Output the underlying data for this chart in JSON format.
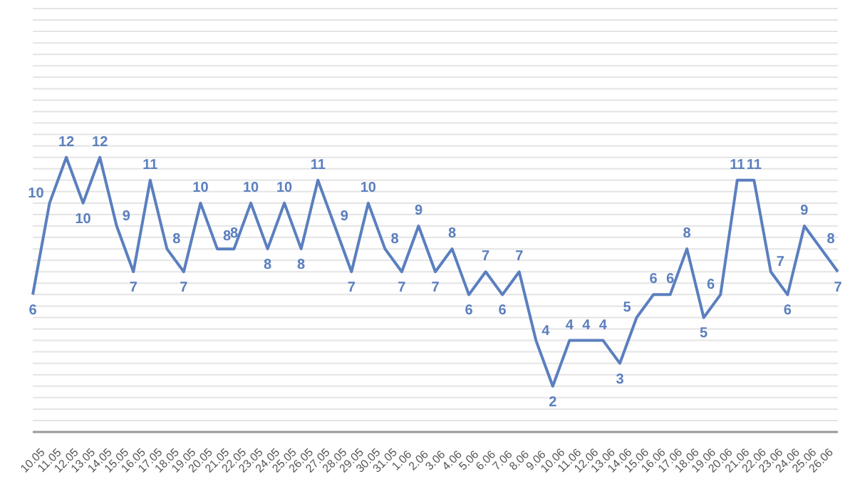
{
  "chart_data": {
    "type": "line",
    "categories": [
      "10.05",
      "11.05",
      "12.05",
      "13.05",
      "14.05",
      "15.05",
      "16.05",
      "17.05",
      "18.05",
      "19.05",
      "20.05",
      "21.05",
      "22.05",
      "23.05",
      "24.05",
      "25.05",
      "26.05",
      "27.05",
      "28.05",
      "29.05",
      "30.05",
      "31.05",
      "1.06",
      "2.06",
      "3.06",
      "4.06",
      "5.06",
      "6.06",
      "7.06",
      "8.06",
      "9.06",
      "10.06",
      "11.06",
      "12.06",
      "13.06",
      "14.06",
      "15.06",
      "16.06",
      "17.06",
      "18.06",
      "19.06",
      "20.06",
      "21.06",
      "22.06",
      "23.06",
      "24.06",
      "25.06",
      "26.06",
      null
    ],
    "series": [
      {
        "color": "#5b7fbf",
        "values": [
          6,
          10,
          12,
          10,
          12,
          9,
          7,
          11,
          8,
          7,
          10,
          8,
          8,
          10,
          8,
          10,
          8,
          11,
          9,
          7,
          10,
          8,
          7,
          9,
          7,
          8,
          6,
          7,
          6,
          7,
          4,
          2,
          4,
          4,
          4,
          3,
          5,
          6,
          6,
          8,
          5,
          6,
          11,
          11,
          7,
          6,
          9,
          8,
          7
        ]
      }
    ],
    "ylim": [
      0,
      18.5
    ],
    "yticks": [
      {
        "value": 0,
        "label": null
      },
      {
        "value": 0.5,
        "label": null
      },
      {
        "value": 1,
        "label": null
      },
      {
        "value": 1.5,
        "label": null
      },
      {
        "value": 2,
        "label": null
      },
      {
        "value": 2.5,
        "label": null
      },
      {
        "value": 3,
        "label": null
      },
      {
        "value": 3.5,
        "label": null
      },
      {
        "value": 4,
        "label": null
      },
      {
        "value": 4.5,
        "label": null
      },
      {
        "value": 5,
        "label": null
      },
      {
        "value": 5.5,
        "label": null
      },
      {
        "value": 6,
        "label": null
      },
      {
        "value": 6.5,
        "label": null
      },
      {
        "value": 7,
        "label": null
      },
      {
        "value": 7.5,
        "label": null
      },
      {
        "value": 8,
        "label": null
      },
      {
        "value": 8.5,
        "label": null
      },
      {
        "value": 9,
        "label": null
      },
      {
        "value": 9.5,
        "label": null
      },
      {
        "value": 10,
        "label": null
      },
      {
        "value": 10.5,
        "label": null
      },
      {
        "value": 11,
        "label": null
      },
      {
        "value": 11.5,
        "label": null
      },
      {
        "value": 12,
        "label": null
      },
      {
        "value": 12.5,
        "label": null
      },
      {
        "value": 13,
        "label": null
      },
      {
        "value": 13.5,
        "label": null
      },
      {
        "value": 14,
        "label": null
      },
      {
        "value": 14.5,
        "label": null
      },
      {
        "value": 15,
        "label": null
      },
      {
        "value": 15.5,
        "label": null
      },
      {
        "value": 16,
        "label": null
      },
      {
        "value": 16.5,
        "label": null
      },
      {
        "value": 17,
        "label": null
      },
      {
        "value": 17.5,
        "label": null
      },
      {
        "value": 18,
        "label": null
      },
      {
        "value": 18.5,
        "label": null
      }
    ],
    "tick_labels": "x",
    "grid": "y",
    "data_labels": true,
    "marker": "none",
    "line_style": "solid",
    "legend": false
  }
}
